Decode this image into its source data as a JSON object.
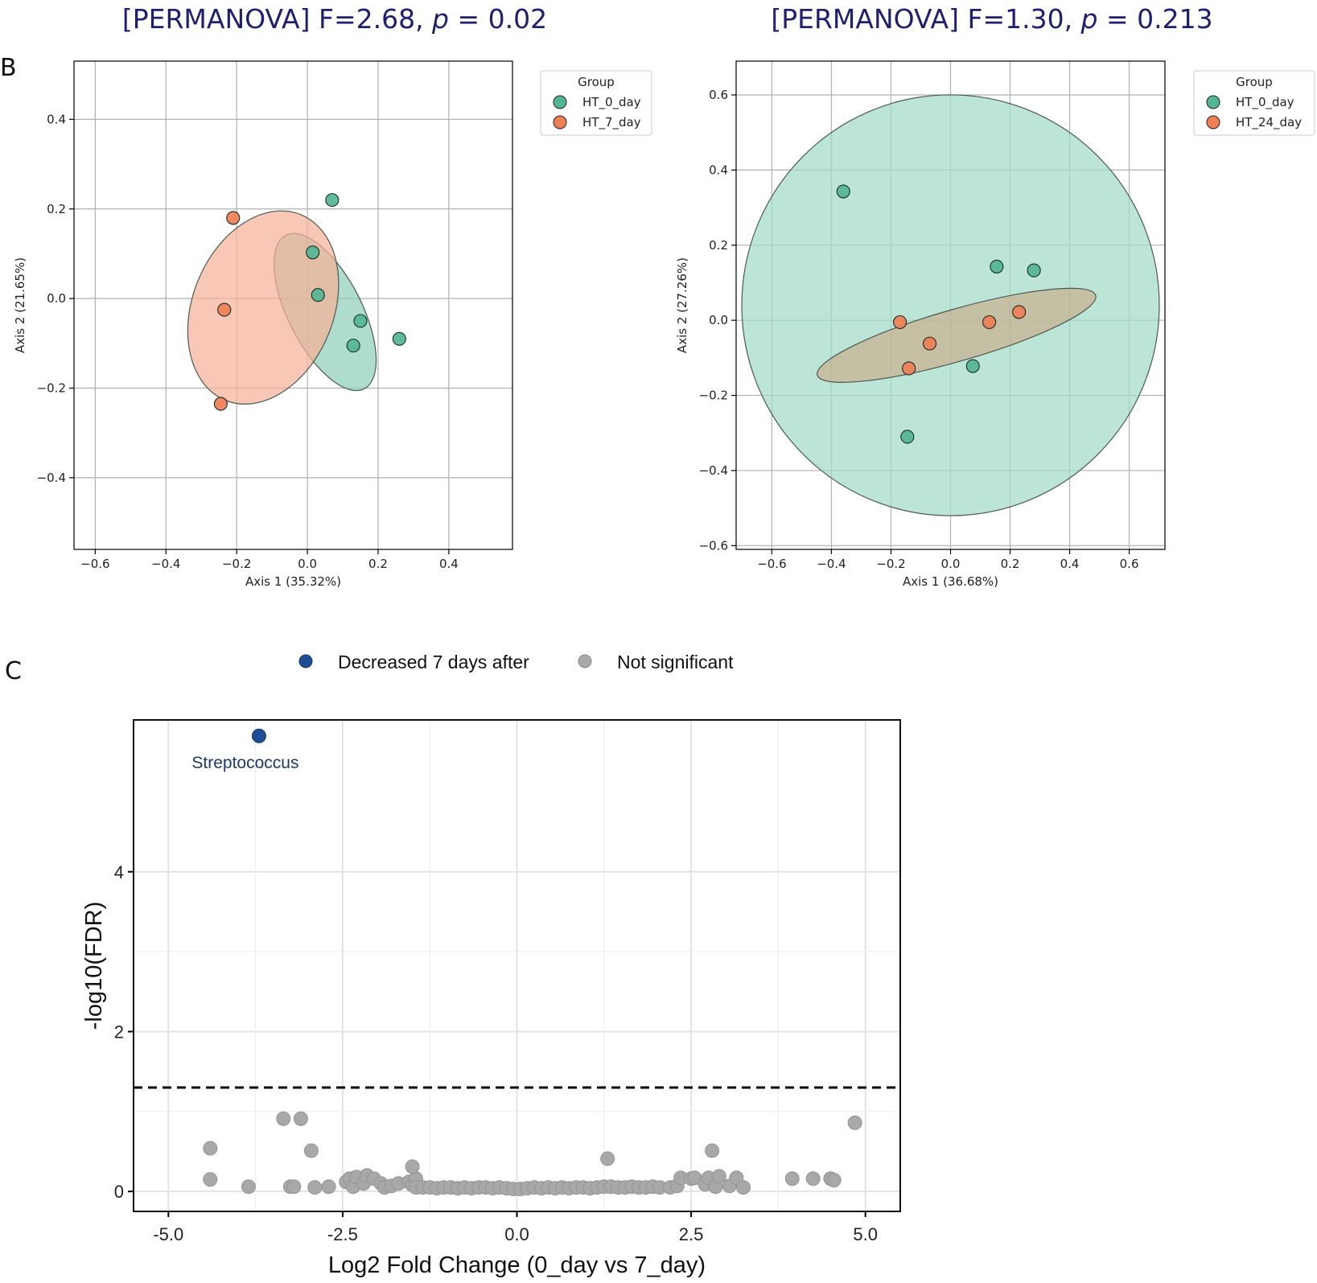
{
  "panel_b_label": "B",
  "panel_c_label": "C",
  "chart_data": [
    {
      "id": "pcoa_7day",
      "type": "scatter",
      "title_prefix": "[PERMANOVA] F=2.68, ",
      "title_p": "p",
      "title_suffix": " = 0.02",
      "xlabel": "Axis 1 (35.32%)",
      "ylabel": "Axis 2 (21.65%)",
      "xlim": [
        -0.66,
        0.58
      ],
      "ylim": [
        -0.56,
        0.53
      ],
      "xticks": [
        -0.6,
        -0.4,
        -0.2,
        0.0,
        0.2,
        0.4
      ],
      "xtick_labels": [
        "−0.6",
        "−0.4",
        "−0.2",
        "0.0",
        "0.2",
        "0.4"
      ],
      "yticks": [
        -0.4,
        -0.2,
        0.0,
        0.2,
        0.4
      ],
      "ytick_labels": [
        "−0.4",
        "−0.2",
        "0.0",
        "0.2",
        "0.4"
      ],
      "grid": true,
      "legend_title": "Group",
      "legend_position": "outside-top-right",
      "series": [
        {
          "name": "HT_0_day",
          "color": "#52b594",
          "points": [
            [
              0.07,
              0.22
            ],
            [
              0.015,
              0.103
            ],
            [
              0.03,
              0.008
            ],
            [
              0.15,
              -0.05
            ],
            [
              0.13,
              -0.105
            ],
            [
              0.26,
              -0.09
            ]
          ],
          "ellipse": {
            "cx": 0.05,
            "cy": -0.03,
            "rx": 0.215,
            "ry": 0.092,
            "angle_deg": -63,
            "fill": "#8fd0bb"
          }
        },
        {
          "name": "HT_7_day",
          "color": "#ee7f56",
          "points": [
            [
              -0.21,
              0.18
            ],
            [
              -0.235,
              -0.025
            ],
            [
              -0.245,
              -0.235
            ]
          ],
          "ellipse": {
            "cx": -0.125,
            "cy": -0.02,
            "rx": 0.25,
            "ry": 0.176,
            "angle_deg": 68,
            "fill": "#f7b298"
          }
        }
      ]
    },
    {
      "id": "pcoa_24day",
      "type": "scatter",
      "title_prefix": "[PERMANOVA] F=1.30, ",
      "title_p": "p",
      "title_suffix": " = 0.213",
      "xlabel": "Axis 1 (36.68%)",
      "ylabel": "Axis 2 (27.26%)",
      "xlim": [
        -0.72,
        0.72
      ],
      "ylim": [
        -0.61,
        0.69
      ],
      "xticks": [
        -0.6,
        -0.4,
        -0.2,
        0.0,
        0.2,
        0.4,
        0.6
      ],
      "xtick_labels": [
        "−0.6",
        "−0.4",
        "−0.2",
        "0.0",
        "0.2",
        "0.4",
        "0.6"
      ],
      "yticks": [
        -0.6,
        -0.4,
        -0.2,
        0.0,
        0.2,
        0.4,
        0.6
      ],
      "ytick_labels": [
        "−0.6",
        "−0.4",
        "−0.2",
        "0.0",
        "0.2",
        "0.4",
        "0.6"
      ],
      "grid": true,
      "legend_title": "Group",
      "legend_position": "outside-top-right",
      "series": [
        {
          "name": "HT_0_day",
          "color": "#52b594",
          "points": [
            [
              -0.36,
              0.343
            ],
            [
              0.155,
              0.143
            ],
            [
              0.28,
              0.133
            ],
            [
              0.075,
              -0.122
            ],
            [
              -0.145,
              -0.31
            ]
          ],
          "ellipse": {
            "cx": 0.0,
            "cy": 0.04,
            "rx": 0.625,
            "ry": 0.62,
            "angle_deg": -90,
            "fill": "#a2d9c7"
          }
        },
        {
          "name": "HT_24_day",
          "color": "#ee7f56",
          "points": [
            [
              -0.17,
              -0.005
            ],
            [
              0.13,
              -0.005
            ],
            [
              0.23,
              0.022
            ],
            [
              -0.07,
              -0.062
            ],
            [
              -0.14,
              -0.128
            ]
          ],
          "ellipse": {
            "cx": 0.02,
            "cy": -0.04,
            "rx": 0.43,
            "ry": 0.077,
            "angle_deg": 16,
            "fill": "#c9b08f"
          }
        }
      ]
    },
    {
      "id": "volcano",
      "type": "scatter",
      "title": "",
      "xlabel": "Log2 Fold Change (0_day vs 7_day)",
      "ylabel": "-log10(FDR)",
      "xlim": [
        -5.5,
        5.5
      ],
      "ylim": [
        -0.25,
        5.9
      ],
      "xticks": [
        -5.0,
        -2.5,
        0.0,
        2.5,
        5.0
      ],
      "xtick_labels": [
        "-5.0",
        "-2.5",
        "0.0",
        "2.5",
        "5.0"
      ],
      "yticks": [
        0,
        2,
        4
      ],
      "ytick_labels": [
        "0",
        "2",
        "4"
      ],
      "grid": true,
      "threshold_y": 1.3,
      "legend_position": "top",
      "legend": [
        {
          "label": "Decreased 7 days after",
          "color": "#1f4e95"
        },
        {
          "label": "Not significant",
          "color": "#a8a8a8"
        }
      ],
      "annotations": [
        {
          "text": "Streptococcus",
          "x": -3.7,
          "y": 5.7
        }
      ],
      "series": [
        {
          "name": "Decreased 7 days after",
          "color": "#1f4e95",
          "points": [
            [
              -3.7,
              5.7
            ]
          ]
        },
        {
          "name": "Not significant",
          "color": "#a8a8a8",
          "points": [
            [
              -4.4,
              0.54
            ],
            [
              -4.4,
              0.15
            ],
            [
              -3.85,
              0.06
            ],
            [
              -3.35,
              0.91
            ],
            [
              -3.1,
              0.91
            ],
            [
              -2.95,
              0.51
            ],
            [
              -3.25,
              0.06
            ],
            [
              -3.2,
              0.06
            ],
            [
              -2.9,
              0.05
            ],
            [
              -2.7,
              0.06
            ],
            [
              -2.45,
              0.12
            ],
            [
              -2.4,
              0.16
            ],
            [
              -2.35,
              0.06
            ],
            [
              -2.3,
              0.18
            ],
            [
              -2.2,
              0.1
            ],
            [
              -2.15,
              0.2
            ],
            [
              -2.05,
              0.16
            ],
            [
              -1.95,
              0.1
            ],
            [
              -1.9,
              0.05
            ],
            [
              -1.8,
              0.07
            ],
            [
              -1.7,
              0.1
            ],
            [
              -1.55,
              0.12
            ],
            [
              -1.5,
              0.08
            ],
            [
              -1.45,
              0.16
            ],
            [
              -1.5,
              0.31
            ],
            [
              -1.45,
              0.05
            ],
            [
              -1.35,
              0.05
            ],
            [
              -1.25,
              0.05
            ],
            [
              -1.15,
              0.04
            ],
            [
              -1.05,
              0.05
            ],
            [
              -0.95,
              0.05
            ],
            [
              -0.85,
              0.04
            ],
            [
              -0.75,
              0.05
            ],
            [
              -0.65,
              0.04
            ],
            [
              -0.55,
              0.05
            ],
            [
              -0.45,
              0.05
            ],
            [
              -0.35,
              0.04
            ],
            [
              -0.25,
              0.05
            ],
            [
              -0.15,
              0.04
            ],
            [
              -0.05,
              0.03
            ],
            [
              0.05,
              0.03
            ],
            [
              0.15,
              0.04
            ],
            [
              0.25,
              0.05
            ],
            [
              0.35,
              0.04
            ],
            [
              0.45,
              0.05
            ],
            [
              0.55,
              0.04
            ],
            [
              0.65,
              0.05
            ],
            [
              0.75,
              0.04
            ],
            [
              0.85,
              0.05
            ],
            [
              0.95,
              0.05
            ],
            [
              1.05,
              0.04
            ],
            [
              1.15,
              0.05
            ],
            [
              1.25,
              0.06
            ],
            [
              1.3,
              0.41
            ],
            [
              1.35,
              0.06
            ],
            [
              1.45,
              0.05
            ],
            [
              1.55,
              0.05
            ],
            [
              1.65,
              0.06
            ],
            [
              1.75,
              0.05
            ],
            [
              1.85,
              0.05
            ],
            [
              1.95,
              0.06
            ],
            [
              2.05,
              0.05
            ],
            [
              2.2,
              0.05
            ],
            [
              2.3,
              0.07
            ],
            [
              2.35,
              0.17
            ],
            [
              2.5,
              0.16
            ],
            [
              2.55,
              0.17
            ],
            [
              2.7,
              0.09
            ],
            [
              2.75,
              0.17
            ],
            [
              2.85,
              0.06
            ],
            [
              2.9,
              0.19
            ],
            [
              3.05,
              0.07
            ],
            [
              2.8,
              0.51
            ],
            [
              3.15,
              0.17
            ],
            [
              3.25,
              0.05
            ],
            [
              3.95,
              0.16
            ],
            [
              4.25,
              0.16
            ],
            [
              4.5,
              0.16
            ],
            [
              4.55,
              0.14
            ],
            [
              4.85,
              0.86
            ]
          ]
        }
      ]
    }
  ]
}
